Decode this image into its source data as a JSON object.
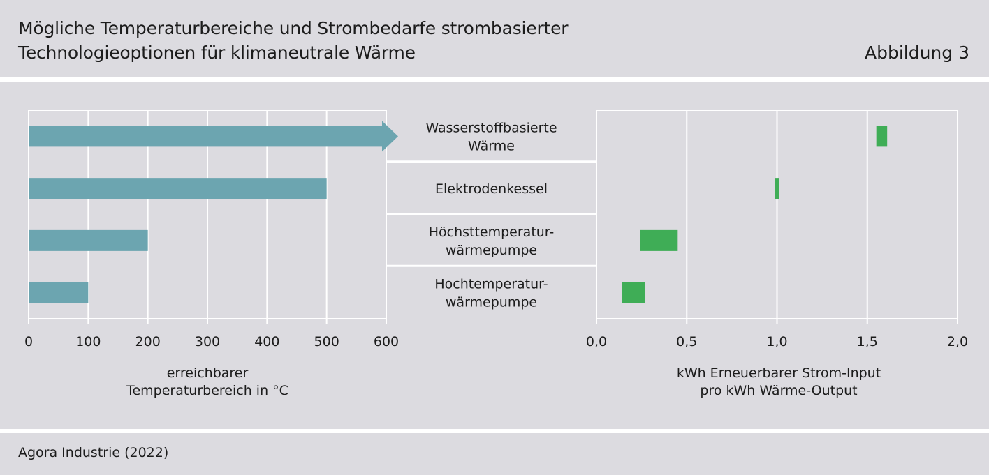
{
  "header": {
    "title_line1": "Mögliche Temperaturbereiche und Strombedarfe strombasierter",
    "title_line2": "Technologieoptionen für klimaneutrale Wärme",
    "figure_label": "Abbildung 3"
  },
  "footer": {
    "source": "Agora Industrie (2022)"
  },
  "colors": {
    "temperature_bar": "#6ca5b0",
    "electricity_bar": "#3fad56",
    "panel": "#dcdbe0",
    "grid": "#ffffff"
  },
  "chart_data": [
    {
      "type": "bar",
      "orientation": "horizontal",
      "categories": [
        [
          "Wasserstoffbasierte",
          "Wärme"
        ],
        [
          "Elektrodenkessel"
        ],
        [
          "Höchsttemperatur-",
          "wärmepumpe"
        ],
        [
          "Hochtemperatur-",
          "wärmepumpe"
        ]
      ],
      "values": [
        600,
        500,
        200,
        100
      ],
      "open_ended": [
        true,
        false,
        false,
        false
      ],
      "xlim": [
        0,
        600
      ],
      "xticks": [
        0,
        100,
        200,
        300,
        400,
        500,
        600
      ],
      "xtick_labels": [
        "0",
        "100",
        "200",
        "300",
        "400",
        "500",
        "600"
      ],
      "xlabel": [
        "erreichbarer",
        "Temperaturbereich in °C"
      ],
      "grid": true
    },
    {
      "type": "bar",
      "orientation": "horizontal",
      "subtype": "range",
      "ranges": [
        [
          1.55,
          1.61
        ],
        [
          0.99,
          1.01
        ],
        [
          0.24,
          0.45
        ],
        [
          0.14,
          0.27
        ]
      ],
      "xlim": [
        0,
        2
      ],
      "xticks": [
        0,
        0.5,
        1,
        1.5,
        2
      ],
      "xtick_labels": [
        "0,0",
        "0,5",
        "1,0",
        "1,5",
        "2,0"
      ],
      "xlabel": [
        "kWh Erneuerbarer Strom-Input",
        "pro kWh Wärme-Output"
      ],
      "grid": true
    }
  ]
}
